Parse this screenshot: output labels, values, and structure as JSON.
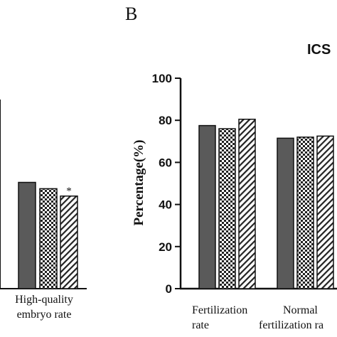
{
  "panel_letter": "B",
  "chart_data": [
    {
      "type": "bar",
      "title": "",
      "ylabel": "",
      "ylim": [
        0,
        100
      ],
      "categories": [
        "High-quality embryo rate"
      ],
      "category_lines": [
        [
          "High-quality",
          "embryo rate"
        ]
      ],
      "series": [
        {
          "values": [
            50.5
          ],
          "fill": "dark"
        },
        {
          "values": [
            47.5
          ],
          "fill": "checker"
        },
        {
          "values": [
            44
          ],
          "fill": "hatch"
        }
      ],
      "annotations": [
        {
          "category": 0,
          "series": 2,
          "text": "*"
        }
      ]
    },
    {
      "type": "bar",
      "title": "ICS",
      "ylabel": "Percentage(%)",
      "ylim": [
        0,
        100
      ],
      "yticks": [
        0,
        20,
        40,
        60,
        80,
        100
      ],
      "categories": [
        "Fertilization rate",
        "Normal fertilization rate"
      ],
      "category_lines": [
        [
          "Fertilization",
          "rate"
        ],
        [
          "Normal",
          "fertilization ra"
        ]
      ],
      "series": [
        {
          "values": [
            77.5,
            71.5
          ],
          "fill": "dark"
        },
        {
          "values": [
            76,
            72
          ],
          "fill": "checker"
        },
        {
          "values": [
            80.5,
            72.5
          ],
          "fill": "hatch"
        }
      ]
    }
  ],
  "colors": {
    "dark_bar": "#5a5a5a",
    "axis": "#111111",
    "text": "#111111"
  }
}
